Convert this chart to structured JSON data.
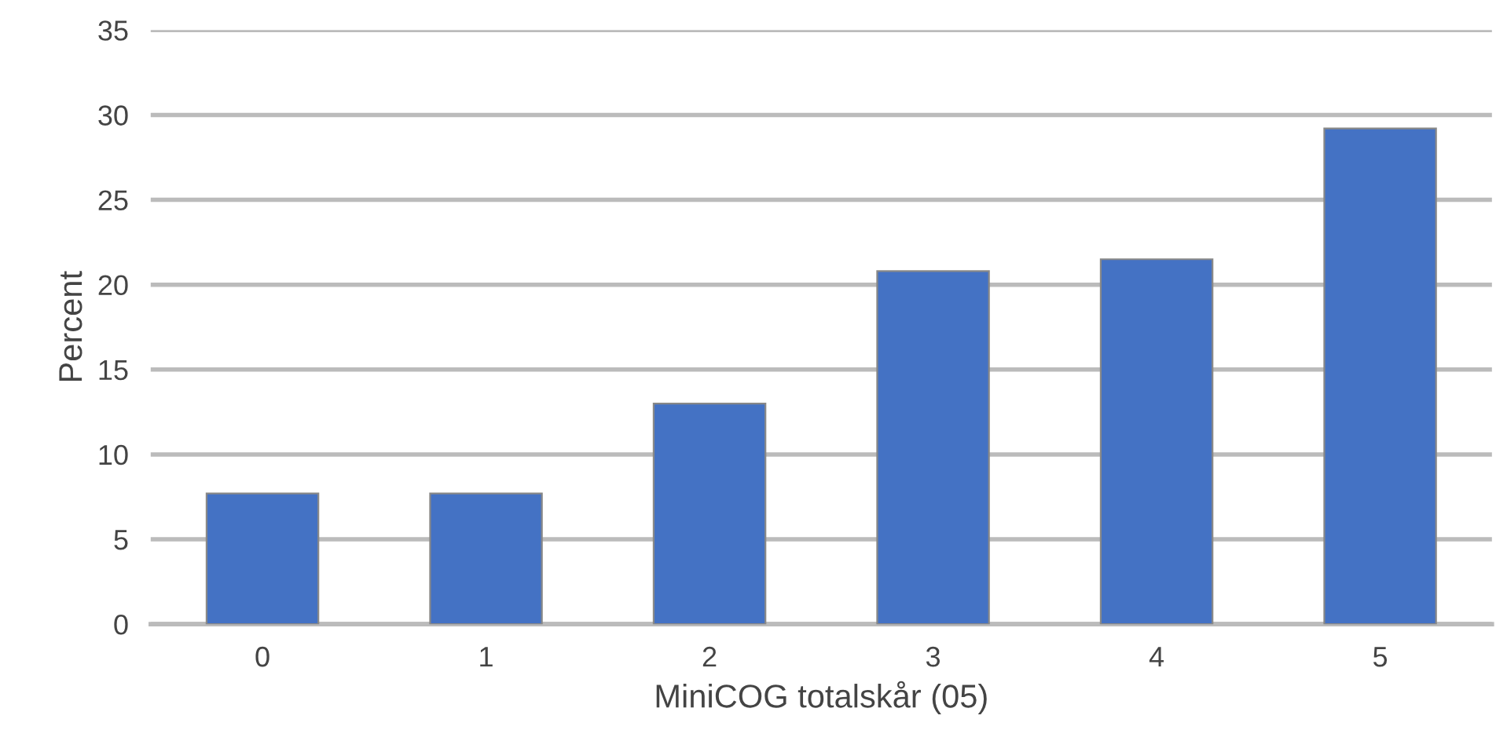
{
  "chart_data": {
    "type": "bar",
    "xlabel": "MiniCOG totalskår (05)",
    "ylabel": "Percent",
    "categories": [
      "0",
      "1",
      "2",
      "3",
      "4",
      "5"
    ],
    "values": [
      7.7,
      7.7,
      13.0,
      20.8,
      21.5,
      29.2
    ],
    "color": "#4472c4",
    "ylim": [
      0,
      35
    ],
    "yticks": [
      0,
      5,
      10,
      15,
      20,
      25,
      30,
      35
    ],
    "grid": "y"
  }
}
